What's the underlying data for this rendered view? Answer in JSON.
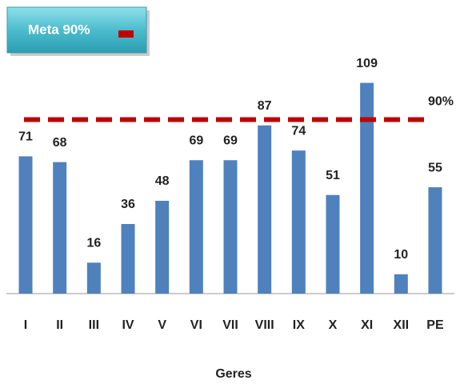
{
  "chart_data": {
    "type": "bar",
    "categories": [
      "I",
      "II",
      "III",
      "IV",
      "V",
      "VI",
      "VII",
      "VIII",
      "IX",
      "X",
      "XI",
      "XII",
      "PE"
    ],
    "values": [
      71,
      68,
      16,
      36,
      48,
      69,
      69,
      87,
      74,
      51,
      109,
      10,
      55
    ],
    "color": "#4f81bd",
    "ylim": [
      0,
      120
    ],
    "x_label": "Geres",
    "target": {
      "name": "Meta 90%",
      "value": 90,
      "label": "90%",
      "color": "#c00000"
    }
  }
}
